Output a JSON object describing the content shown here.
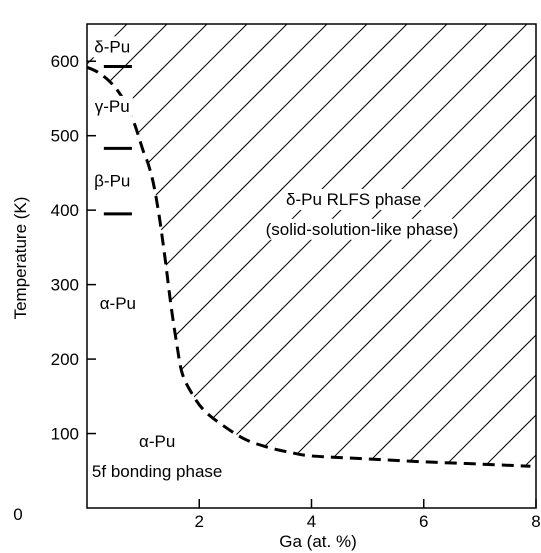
{
  "chart_data": {
    "type": "line",
    "title": "",
    "xlabel": "Ga (at. %)",
    "ylabel": "Temperature (K)",
    "xlim": [
      0,
      8
    ],
    "ylim": [
      0,
      650
    ],
    "x_ticks": [
      2,
      4,
      6,
      8
    ],
    "x_tick_labels": [
      "2",
      "4",
      "6",
      "8"
    ],
    "y_ticks": [
      100,
      200,
      300,
      400,
      500,
      600
    ],
    "y_tick_labels": [
      "100",
      "200",
      "300",
      "400",
      "500",
      "600"
    ],
    "origin_label": "0",
    "grid": false,
    "legend": "none",
    "series": [
      {
        "style": "dashed",
        "x": [
          0.0,
          0.2,
          0.4,
          0.55,
          0.7,
          0.85,
          1.0,
          1.1,
          1.2,
          1.3,
          1.4,
          1.5,
          1.6,
          1.7,
          1.9,
          2.1,
          2.4,
          2.8,
          3.2,
          3.6,
          4.0,
          5.0,
          6.0,
          7.0,
          7.9
        ],
        "y": [
          592,
          585,
          573,
          560,
          542,
          515,
          480,
          460,
          430,
          385,
          330,
          270,
          220,
          180,
          150,
          130,
          112,
          93,
          82,
          75,
          70,
          66,
          62,
          59,
          56
        ]
      }
    ],
    "hatched_region": "above-right of dashed curve",
    "transition_temperatures": [
      {
        "x": [
          0.3,
          0.8
        ],
        "y": 593
      },
      {
        "x": [
          0.3,
          0.8
        ],
        "y": 483
      },
      {
        "x": [
          0.3,
          0.8
        ],
        "y": 395
      }
    ],
    "annotations": [
      {
        "text": "δ-Pu",
        "x": 0.45,
        "y": 620
      },
      {
        "text": "γ-Pu",
        "x": 0.45,
        "y": 540
      },
      {
        "text": "β-Pu",
        "x": 0.45,
        "y": 440
      },
      {
        "text": "α-Pu",
        "x": 0.55,
        "y": 275
      },
      {
        "text": "δ-Pu RLFS phase",
        "x": 4.75,
        "y": 415
      },
      {
        "text": "(solid-solution-like phase)",
        "x": 4.9,
        "y": 375
      },
      {
        "text": "α-Pu",
        "x": 1.25,
        "y": 90
      },
      {
        "text": "5f bonding phase",
        "x": 1.25,
        "y": 50
      }
    ]
  }
}
